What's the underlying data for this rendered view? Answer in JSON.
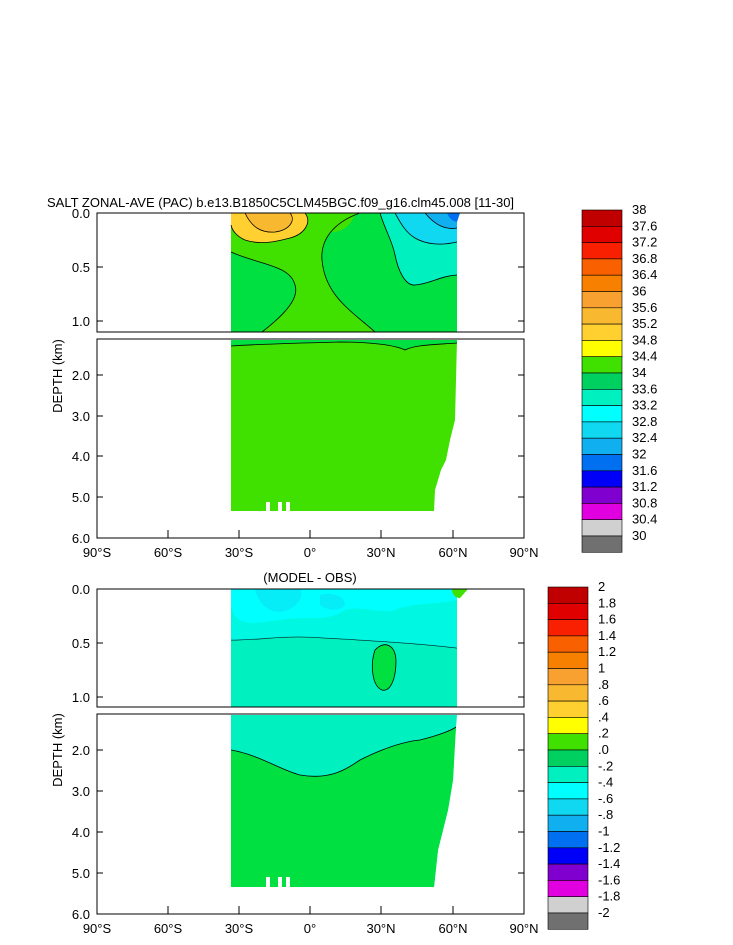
{
  "chart_data": [
    {
      "type": "contour",
      "title": "SALT ZONAL-AVE (PAC) b.e13.B1850C5CLM45BGC.f09_g16.clm45.008 [11-30]",
      "ylabel": "DEPTH (km)",
      "xticks": [
        "90°S",
        "60°S",
        "30°S",
        "0°",
        "30°N",
        "60°N",
        "90°N"
      ],
      "yticks_upper": [
        "0.0",
        "0.5",
        "1.0"
      ],
      "yticks_lower": [
        "2.0",
        "3.0",
        "4.0",
        "5.0",
        "6.0"
      ],
      "ylim_upper": [
        0,
        1.1
      ],
      "ylim_lower": [
        1.1,
        6.0
      ],
      "xlim": [
        -90,
        90
      ],
      "colorbar": {
        "labels": [
          "38",
          "37.6",
          "37.2",
          "36.8",
          "36.4",
          "36",
          "35.6",
          "35.2",
          "34.8",
          "34.4",
          "34",
          "33.6",
          "33.2",
          "32.8",
          "32.4",
          "32",
          "31.6",
          "31.2",
          "30.8",
          "30.4",
          "30"
        ],
        "colors": [
          "#c00000",
          "#e00000",
          "#f82000",
          "#f86000",
          "#f88000",
          "#f8a030",
          "#f8b830",
          "#ffd030",
          "#ffff00",
          "#40e000",
          "#00d060",
          "#00f0c0",
          "#00ffff",
          "#10d8f0",
          "#10b0f0",
          "#0070f0",
          "#0000f8",
          "#8000d0",
          "#e000e0",
          "#d0d0d0",
          "#707070"
        ]
      }
    },
    {
      "type": "contour",
      "title": "(MODEL - OBS)",
      "ylabel": "DEPTH (km)",
      "xticks": [
        "90°S",
        "60°S",
        "30°S",
        "0°",
        "30°N",
        "60°N",
        "90°N"
      ],
      "yticks_upper": [
        "0.0",
        "0.5",
        "1.0"
      ],
      "yticks_lower": [
        "2.0",
        "3.0",
        "4.0",
        "5.0",
        "6.0"
      ],
      "ylim_upper": [
        0,
        1.1
      ],
      "ylim_lower": [
        1.1,
        6.0
      ],
      "xlim": [
        -90,
        90
      ],
      "colorbar": {
        "labels": [
          "2",
          "1.8",
          "1.6",
          "1.4",
          "1.2",
          "1",
          ".8",
          ".6",
          ".4",
          ".2",
          ".0",
          "-.2",
          "-.4",
          "-.6",
          "-.8",
          "-1",
          "-1.2",
          "-1.4",
          "-1.6",
          "-1.8",
          "-2"
        ],
        "colors": [
          "#c00000",
          "#e00000",
          "#f82000",
          "#f86000",
          "#f88000",
          "#f8a030",
          "#f8b830",
          "#ffd030",
          "#ffff00",
          "#40e000",
          "#00d060",
          "#00f0c0",
          "#00ffff",
          "#10d8f0",
          "#10b0f0",
          "#0070f0",
          "#0000f8",
          "#8000d0",
          "#e000e0",
          "#d0d0d0",
          "#707070"
        ]
      }
    }
  ]
}
